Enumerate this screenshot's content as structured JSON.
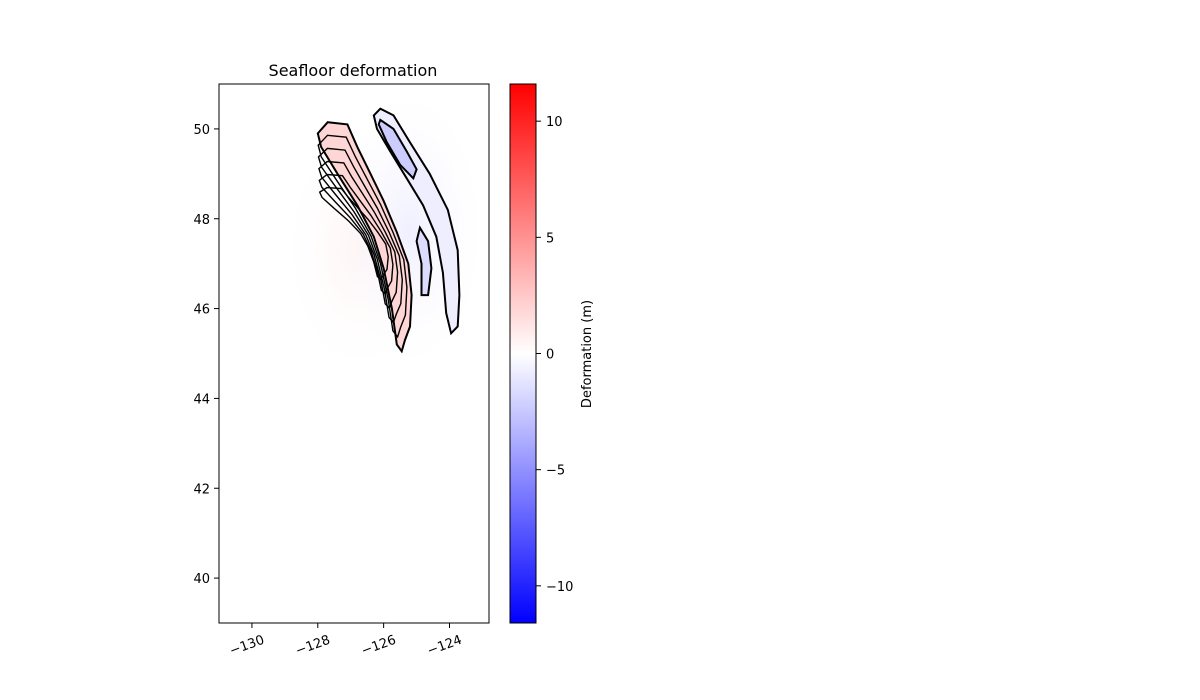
{
  "chart_data": {
    "type": "heatmap",
    "title": "Seafloor deformation",
    "xlabel": "",
    "ylabel": "",
    "xlim": [
      -131,
      -122.8
    ],
    "ylim": [
      39,
      51
    ],
    "x_ticks": [
      -130,
      -128,
      -126,
      -124
    ],
    "x_tick_labels": [
      "−130",
      "−128",
      "−126",
      "−124"
    ],
    "y_ticks": [
      40,
      42,
      44,
      46,
      48,
      50
    ],
    "y_tick_labels": [
      "40",
      "42",
      "44",
      "46",
      "48",
      "50"
    ],
    "colorbar": {
      "label": "Deformation (m)",
      "range": [
        -11.6,
        11.6
      ],
      "ticks": [
        -10,
        -5,
        0,
        5,
        10
      ],
      "tick_labels": [
        "−10",
        "−5",
        "0",
        "5",
        "10"
      ],
      "colormap": [
        "#0000ff",
        "#ffffff",
        "#ff0000"
      ]
    },
    "uplift_zone": {
      "description_value_m": 2,
      "outline": [
        [
          -128,
          49.9
        ],
        [
          -127.7,
          50.15
        ],
        [
          -127.1,
          50.1
        ],
        [
          -126.8,
          49.6
        ],
        [
          -126.4,
          49.0
        ],
        [
          -126.0,
          48.4
        ],
        [
          -125.6,
          47.7
        ],
        [
          -125.25,
          47.0
        ],
        [
          -125.15,
          46.3
        ],
        [
          -125.2,
          45.6
        ],
        [
          -125.35,
          45.3
        ],
        [
          -125.45,
          45.05
        ],
        [
          -125.6,
          45.2
        ],
        [
          -125.75,
          46.0
        ],
        [
          -126.0,
          46.9
        ],
        [
          -126.3,
          47.6
        ],
        [
          -126.8,
          48.3
        ],
        [
          -127.4,
          49.0
        ],
        [
          -127.9,
          49.6
        ]
      ]
    },
    "subsidence_zone": {
      "description_value_m": -1,
      "outer_contour": [
        [
          -126.3,
          50.3
        ],
        [
          -126.1,
          50.45
        ],
        [
          -125.7,
          50.3
        ],
        [
          -125.2,
          49.7
        ],
        [
          -124.6,
          49.0
        ],
        [
          -124.05,
          48.2
        ],
        [
          -123.75,
          47.3
        ],
        [
          -123.7,
          46.3
        ],
        [
          -123.75,
          45.6
        ],
        [
          -123.95,
          45.45
        ],
        [
          -124.1,
          45.9
        ],
        [
          -124.2,
          46.8
        ],
        [
          -124.4,
          47.6
        ],
        [
          -124.8,
          48.3
        ],
        [
          -125.3,
          48.9
        ],
        [
          -125.8,
          49.5
        ],
        [
          -126.2,
          50.0
        ]
      ],
      "inner_contour": [
        [
          -126.1,
          50.2
        ],
        [
          -125.7,
          50.0
        ],
        [
          -125.3,
          49.5
        ],
        [
          -125.0,
          49.1
        ],
        [
          -125.1,
          48.9
        ],
        [
          -125.5,
          49.2
        ],
        [
          -125.9,
          49.7
        ],
        [
          -126.15,
          50.1
        ]
      ],
      "small_contour": [
        [
          -124.9,
          47.8
        ],
        [
          -124.65,
          47.5
        ],
        [
          -124.55,
          46.9
        ],
        [
          -124.65,
          46.3
        ],
        [
          -124.85,
          46.3
        ],
        [
          -124.85,
          47.0
        ],
        [
          -125.0,
          47.5
        ]
      ]
    }
  }
}
